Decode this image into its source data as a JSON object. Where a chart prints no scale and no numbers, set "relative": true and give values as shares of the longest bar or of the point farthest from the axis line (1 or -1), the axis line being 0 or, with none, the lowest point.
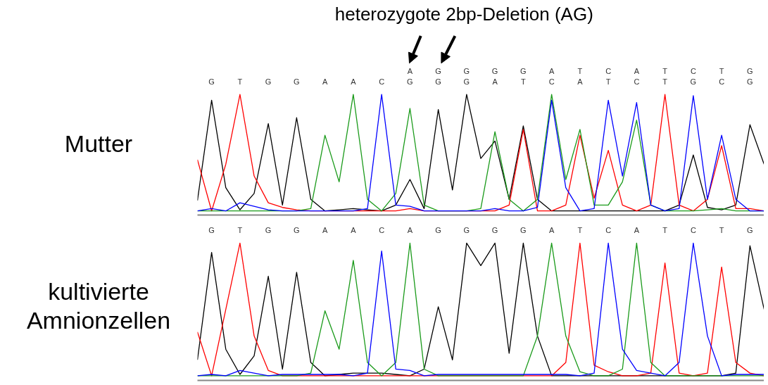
{
  "chart_data": [
    {
      "type": "line",
      "title": "heterozygote 2bp-Deletion (AG)",
      "ylabel": "Mutter",
      "relative": true,
      "tick_labels": "x",
      "grid": false,
      "categories": [
        null,
        "G",
        null,
        "T",
        null,
        "G",
        null,
        "G",
        null,
        "A",
        null,
        "A",
        null,
        "C",
        null,
        "A\nG",
        null,
        "G\nG",
        null,
        "G\nG",
        null,
        "G\nA",
        null,
        "G\nT",
        null,
        "A\nC",
        null,
        "T\nA",
        null,
        "C\nT",
        null,
        "A\nC",
        null,
        "T\nT",
        null,
        "C\nG",
        null,
        "T\nC",
        null,
        "G\nG",
        null
      ],
      "series": [
        {
          "color": "#000000",
          "values": [
            0.09,
            0.95,
            0.2,
            0.01,
            0.15,
            0.75,
            0.05,
            0.8,
            0.1,
            0,
            0.01,
            0.02,
            0.01,
            0,
            0.05,
            0.27,
            0.02,
            0.87,
            0.18,
            1,
            0.45,
            0.6,
            0.1,
            0.73,
            0.1,
            0,
            0,
            0,
            0,
            0,
            0,
            0,
            0,
            0,
            0.05,
            0.48,
            0.03,
            0.01,
            0.05,
            0.74,
            0.4
          ]
        },
        {
          "color": "#ff0000",
          "values": [
            0.44,
            0,
            0.4,
            1,
            0.3,
            0.07,
            0.03,
            0.01,
            0,
            0,
            0,
            0,
            0,
            0,
            0,
            0.02,
            0,
            0,
            0,
            0,
            0,
            0,
            0.05,
            0.7,
            0,
            0,
            0.05,
            0.65,
            0.11,
            0.52,
            0.05,
            0,
            0.05,
            1,
            0.05,
            0,
            0.1,
            0.56,
            0.02,
            0.02,
            0
          ]
        },
        {
          "color": "#1a9a1a",
          "values": [
            0,
            0,
            0,
            0,
            0,
            0,
            0,
            0,
            0.02,
            0.65,
            0.25,
            1,
            0.1,
            0,
            0.15,
            0.88,
            0.05,
            0,
            0,
            0,
            0.02,
            0.68,
            0.1,
            0,
            0.1,
            1,
            0.27,
            0.7,
            0.05,
            0.05,
            0.25,
            0.78,
            0.05,
            0,
            0,
            0,
            0.01,
            0.02,
            0,
            0,
            0
          ]
        },
        {
          "color": "#0000ff",
          "values": [
            0,
            0.02,
            0,
            0.07,
            0.04,
            0.01,
            0,
            0,
            0,
            0,
            0,
            0,
            0.02,
            1,
            0.05,
            0.04,
            0,
            0,
            0,
            0,
            0,
            0.02,
            0,
            0,
            0.03,
            0.95,
            0.2,
            0,
            0.02,
            0.95,
            0.3,
            0.93,
            0.05,
            0,
            0.02,
            0.99,
            0.1,
            0.65,
            0.1,
            0,
            0
          ]
        }
      ]
    },
    {
      "type": "line",
      "ylabel": "kultivierte Amnionzellen",
      "relative": true,
      "tick_labels": "x",
      "grid": false,
      "categories": [
        null,
        "G",
        null,
        "T",
        null,
        "G",
        null,
        "G",
        null,
        "A",
        null,
        "A",
        null,
        "C",
        null,
        "A",
        null,
        "G",
        null,
        "G",
        null,
        "G",
        null,
        "G",
        null,
        "A",
        null,
        "T",
        null,
        "C",
        null,
        "A",
        null,
        "T",
        null,
        "C",
        null,
        "T",
        null,
        "G",
        null
      ],
      "series": [
        {
          "color": "#000000",
          "values": [
            0.12,
            0.93,
            0.2,
            0.01,
            0.15,
            0.75,
            0.05,
            0.78,
            0.1,
            0,
            0.01,
            0.02,
            0.02,
            0.02,
            0.01,
            0,
            0.05,
            0.52,
            0.12,
            1,
            0.83,
            1,
            0.17,
            1,
            0.3,
            0,
            0,
            0,
            0,
            0,
            0,
            0,
            0,
            0,
            0,
            0,
            0,
            0,
            0.02,
            0.98,
            0.5
          ]
        },
        {
          "color": "#ff0000",
          "values": [
            0.33,
            0,
            0.5,
            1,
            0.3,
            0.04,
            0,
            0,
            0,
            0,
            0,
            0,
            0,
            0,
            0,
            0,
            0,
            0,
            0,
            0,
            0,
            0,
            0,
            0,
            0,
            0,
            0.1,
            1,
            0.08,
            0.03,
            0,
            0,
            0.02,
            0.85,
            0.02,
            0,
            0.02,
            0.82,
            0.1,
            0.02,
            0
          ]
        },
        {
          "color": "#1a9a1a",
          "values": [
            0,
            0,
            0,
            0,
            0,
            0,
            0,
            0,
            0.02,
            0.49,
            0.2,
            0.87,
            0.1,
            0,
            0.1,
            1,
            0.05,
            0,
            0,
            0,
            0,
            0,
            0,
            0,
            0.3,
            1,
            0.3,
            0.03,
            0,
            0,
            0.05,
            1,
            0.1,
            0,
            0,
            0,
            0,
            0,
            0,
            0,
            0
          ]
        },
        {
          "color": "#0000ff",
          "values": [
            0,
            0.01,
            0,
            0.04,
            0.02,
            0,
            0.01,
            0.01,
            0.01,
            0.01,
            0.01,
            0,
            0.02,
            0.94,
            0.05,
            0.04,
            0,
            0.01,
            0.01,
            0.01,
            0.01,
            0.01,
            0.01,
            0.01,
            0.01,
            0.01,
            0.01,
            0,
            0.02,
            1,
            0.2,
            0.04,
            0.02,
            0,
            0.1,
            1,
            0.3,
            0,
            0.01,
            0.01,
            0.01
          ]
        }
      ]
    }
  ]
}
